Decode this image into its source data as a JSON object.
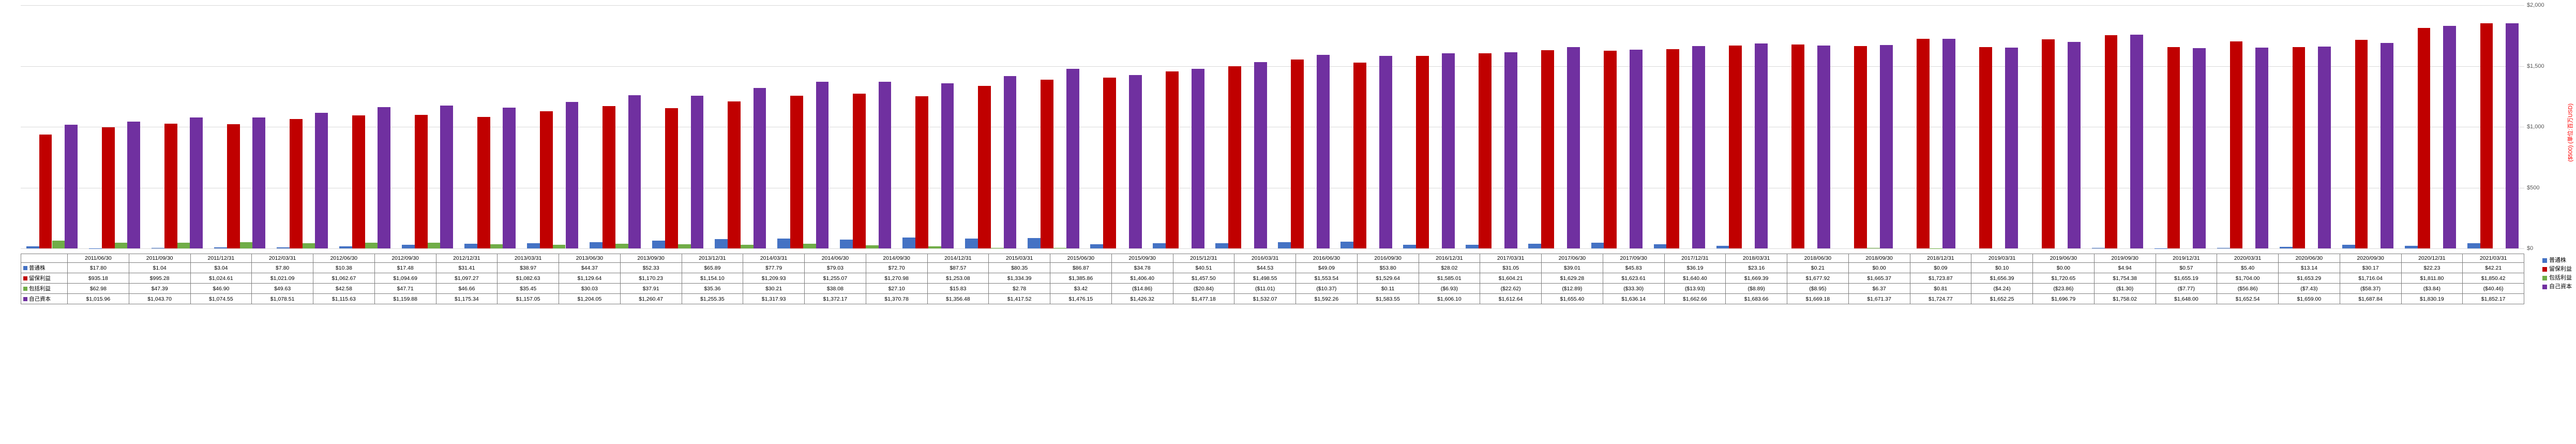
{
  "chart": {
    "y_axis": {
      "min": 0,
      "max": 2000,
      "ticks": [
        0,
        500,
        1000,
        1500,
        2000
      ],
      "tick_labels": [
        "$0",
        "$500",
        "$1,000",
        "$1,500",
        "$2,000"
      ]
    },
    "axis_title_right": "($500)\n(単位:百万USD)",
    "group_gap_ratio": 0.18,
    "bar_colors": [
      "#4472c4",
      "#c00000",
      "#70ad47",
      "#7030a0"
    ],
    "grid_color": "#d9d9d9"
  },
  "series_labels": [
    "普通株",
    "留保利益",
    "包括利益",
    "自己資本"
  ],
  "periods": [
    "2011/06/30",
    "2011/09/30",
    "2011/12/31",
    "2012/03/31",
    "2012/06/30",
    "2012/09/30",
    "2012/12/31",
    "2013/03/31",
    "2013/06/30",
    "2013/09/30",
    "2013/12/31",
    "2014/03/31",
    "2014/06/30",
    "2014/09/30",
    "2014/12/31",
    "2015/03/31",
    "2015/06/30",
    "2015/09/30",
    "2015/12/31",
    "2016/03/31",
    "2016/06/30",
    "2016/09/30",
    "2016/12/31",
    "2017/03/31",
    "2017/06/30",
    "2017/09/30",
    "2017/12/31",
    "2018/03/31",
    "2018/06/30",
    "2018/09/30",
    "2018/12/31",
    "2019/03/31",
    "2019/06/30",
    "2019/09/30",
    "2019/12/31",
    "2020/03/31",
    "2020/06/30",
    "2020/09/30",
    "2020/12/31",
    "2021/03/31"
  ],
  "series": {
    "common_stock": {
      "raw": [
        17.8,
        1.04,
        3.04,
        7.8,
        10.38,
        17.48,
        31.41,
        38.97,
        44.37,
        52.33,
        65.89,
        77.79,
        79.03,
        72.7,
        87.57,
        80.35,
        86.87,
        34.78,
        40.51,
        44.53,
        49.09,
        53.8,
        28.02,
        31.05,
        39.01,
        45.83,
        36.19,
        23.16,
        0.21,
        0.0,
        0.09,
        0.1,
        0.0,
        4.94,
        0.57,
        5.4,
        13.14,
        30.17,
        22.23,
        42.21
      ],
      "disp": [
        "$17.80",
        "$1.04",
        "$3.04",
        "$7.80",
        "$10.38",
        "$17.48",
        "$31.41",
        "$38.97",
        "$44.37",
        "$52.33",
        "$65.89",
        "$77.79",
        "$79.03",
        "$72.70",
        "$87.57",
        "$80.35",
        "$86.87",
        "$34.78",
        "$40.51",
        "$44.53",
        "$49.09",
        "$53.80",
        "$28.02",
        "$31.05",
        "$39.01",
        "$45.83",
        "$36.19",
        "$23.16",
        "$0.21",
        "$0.00",
        "$0.09",
        "$0.10",
        "$0.00",
        "$4.94",
        "$0.57",
        "$5.40",
        "$13.14",
        "$30.17",
        "$22.23",
        "$42.21"
      ]
    },
    "retained": {
      "raw": [
        935.18,
        995.28,
        1024.61,
        1021.09,
        1062.67,
        1094.69,
        1097.27,
        1082.63,
        1129.64,
        1170.23,
        1154.1,
        1209.93,
        1255.07,
        1270.98,
        1253.08,
        1334.39,
        1385.86,
        1406.4,
        1457.5,
        1498.55,
        1553.54,
        1529.64,
        1585.01,
        1604.21,
        1629.28,
        1623.61,
        1640.4,
        1669.39,
        1677.92,
        1665.37,
        1723.87,
        1656.39,
        1720.65,
        1754.38,
        1655.19,
        1704.0,
        1653.29,
        1716.04,
        1811.8,
        1850.42
      ],
      "disp": [
        "$935.18",
        "$995.28",
        "$1,024.61",
        "$1,021.09",
        "$1,062.67",
        "$1,094.69",
        "$1,097.27",
        "$1,082.63",
        "$1,129.64",
        "$1,170.23",
        "$1,154.10",
        "$1,209.93",
        "$1,255.07",
        "$1,270.98",
        "$1,253.08",
        "$1,334.39",
        "$1,385.86",
        "$1,406.40",
        "$1,457.50",
        "$1,498.55",
        "$1,553.54",
        "$1,529.64",
        "$1,585.01",
        "$1,604.21",
        "$1,629.28",
        "$1,623.61",
        "$1,640.40",
        "$1,669.39",
        "$1,677.92",
        "$1,665.37",
        "$1,723.87",
        "$1,656.39",
        "$1,720.65",
        "$1,754.38",
        "$1,655.19",
        "$1,704.00",
        "$1,653.29",
        "$1,716.04",
        "$1,811.80",
        "$1,850.42"
      ]
    },
    "comprehensive": {
      "raw": [
        62.98,
        47.39,
        46.9,
        49.63,
        42.58,
        47.71,
        46.66,
        35.45,
        30.03,
        37.91,
        35.36,
        30.21,
        38.08,
        27.1,
        15.83,
        2.78,
        3.42,
        -14.86,
        -20.84,
        -11.01,
        -10.37,
        0.11,
        -6.93,
        -22.62,
        -12.89,
        -33.3,
        -13.93,
        -8.89,
        -8.95,
        6.37,
        0.81,
        -4.24,
        -23.86,
        -1.3,
        -7.77,
        -56.86,
        -7.43,
        -58.37,
        -3.84,
        -40.46
      ],
      "disp": [
        "$62.98",
        "$47.39",
        "$46.90",
        "$49.63",
        "$42.58",
        "$47.71",
        "$46.66",
        "$35.45",
        "$30.03",
        "$37.91",
        "$35.36",
        "$30.21",
        "$38.08",
        "$27.10",
        "$15.83",
        "$2.78",
        "$3.42",
        "($14.86)",
        "($20.84)",
        "($11.01)",
        "($10.37)",
        "$0.11",
        "($6.93)",
        "($22.62)",
        "($12.89)",
        "($33.30)",
        "($13.93)",
        "($8.89)",
        "($8.95)",
        "$6.37",
        "$0.81",
        "($4.24)",
        "($23.86)",
        "($1.30)",
        "($7.77)",
        "($56.86)",
        "($7.43)",
        "($58.37)",
        "($3.84)",
        "($40.46)"
      ]
    },
    "equity": {
      "raw": [
        1015.96,
        1043.7,
        1074.55,
        1078.51,
        1115.63,
        1159.88,
        1175.34,
        1157.05,
        1204.05,
        1260.47,
        1255.35,
        1317.93,
        1372.17,
        1370.78,
        1356.48,
        1417.52,
        1476.15,
        1426.32,
        1477.18,
        1532.07,
        1592.26,
        1583.55,
        1606.1,
        1612.64,
        1655.4,
        1636.14,
        1662.66,
        1683.66,
        1669.18,
        1671.37,
        1724.77,
        1652.25,
        1696.79,
        1758.02,
        1648.0,
        1652.54,
        1659.0,
        1687.84,
        1830.19,
        1852.17
      ],
      "disp": [
        "$1,015.96",
        "$1,043.70",
        "$1,074.55",
        "$1,078.51",
        "$1,115.63",
        "$1,159.88",
        "$1,175.34",
        "$1,157.05",
        "$1,204.05",
        "$1,260.47",
        "$1,255.35",
        "$1,317.93",
        "$1,372.17",
        "$1,370.78",
        "$1,356.48",
        "$1,417.52",
        "$1,476.15",
        "$1,426.32",
        "$1,477.18",
        "$1,532.07",
        "$1,592.26",
        "$1,583.55",
        "$1,606.10",
        "$1,612.64",
        "$1,655.40",
        "$1,636.14",
        "$1,662.66",
        "$1,683.66",
        "$1,669.18",
        "$1,671.37",
        "$1,724.77",
        "$1,652.25",
        "$1,696.79",
        "$1,758.02",
        "$1,648.00",
        "$1,652.54",
        "$1,659.00",
        "$1,687.84",
        "$1,830.19",
        "$1,852.17"
      ]
    }
  }
}
